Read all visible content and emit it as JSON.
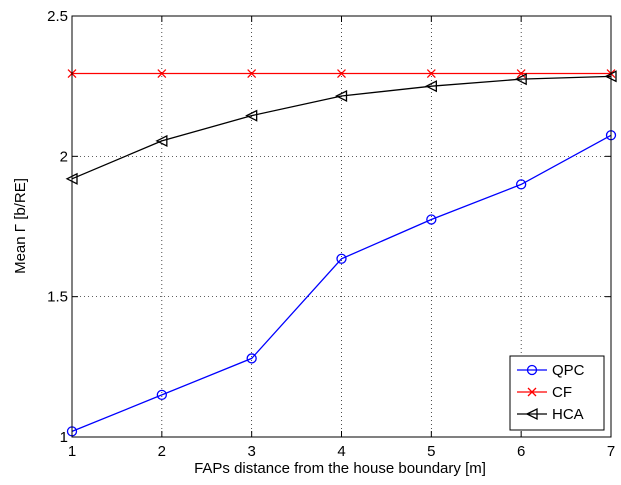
{
  "chart_data": {
    "type": "line",
    "title": "",
    "xlabel": "FAPs distance from the house boundary [m]",
    "ylabel": "Mean Γ [b/RE]",
    "x": [
      1,
      2,
      3,
      4,
      5,
      6,
      7
    ],
    "xlim": [
      1,
      7
    ],
    "ylim": [
      1,
      2.5
    ],
    "xticks": [
      "1",
      "2",
      "3",
      "4",
      "5",
      "6",
      "7"
    ],
    "yticks": [
      "1",
      "1.5",
      "2",
      "2.5"
    ],
    "grid": true,
    "legend_position": "bottom-right",
    "series": [
      {
        "name": "QPC",
        "color": "#0000ff",
        "marker": "circle",
        "values": [
          1.02,
          1.15,
          1.28,
          1.635,
          1.775,
          1.9,
          2.075
        ]
      },
      {
        "name": "CF",
        "color": "#ff0000",
        "marker": "x",
        "values": [
          2.295,
          2.295,
          2.295,
          2.295,
          2.295,
          2.295,
          2.295
        ]
      },
      {
        "name": "HCA",
        "color": "#000000",
        "marker": "triangle-left",
        "values": [
          1.92,
          2.055,
          2.145,
          2.215,
          2.25,
          2.275,
          2.285
        ]
      }
    ]
  }
}
